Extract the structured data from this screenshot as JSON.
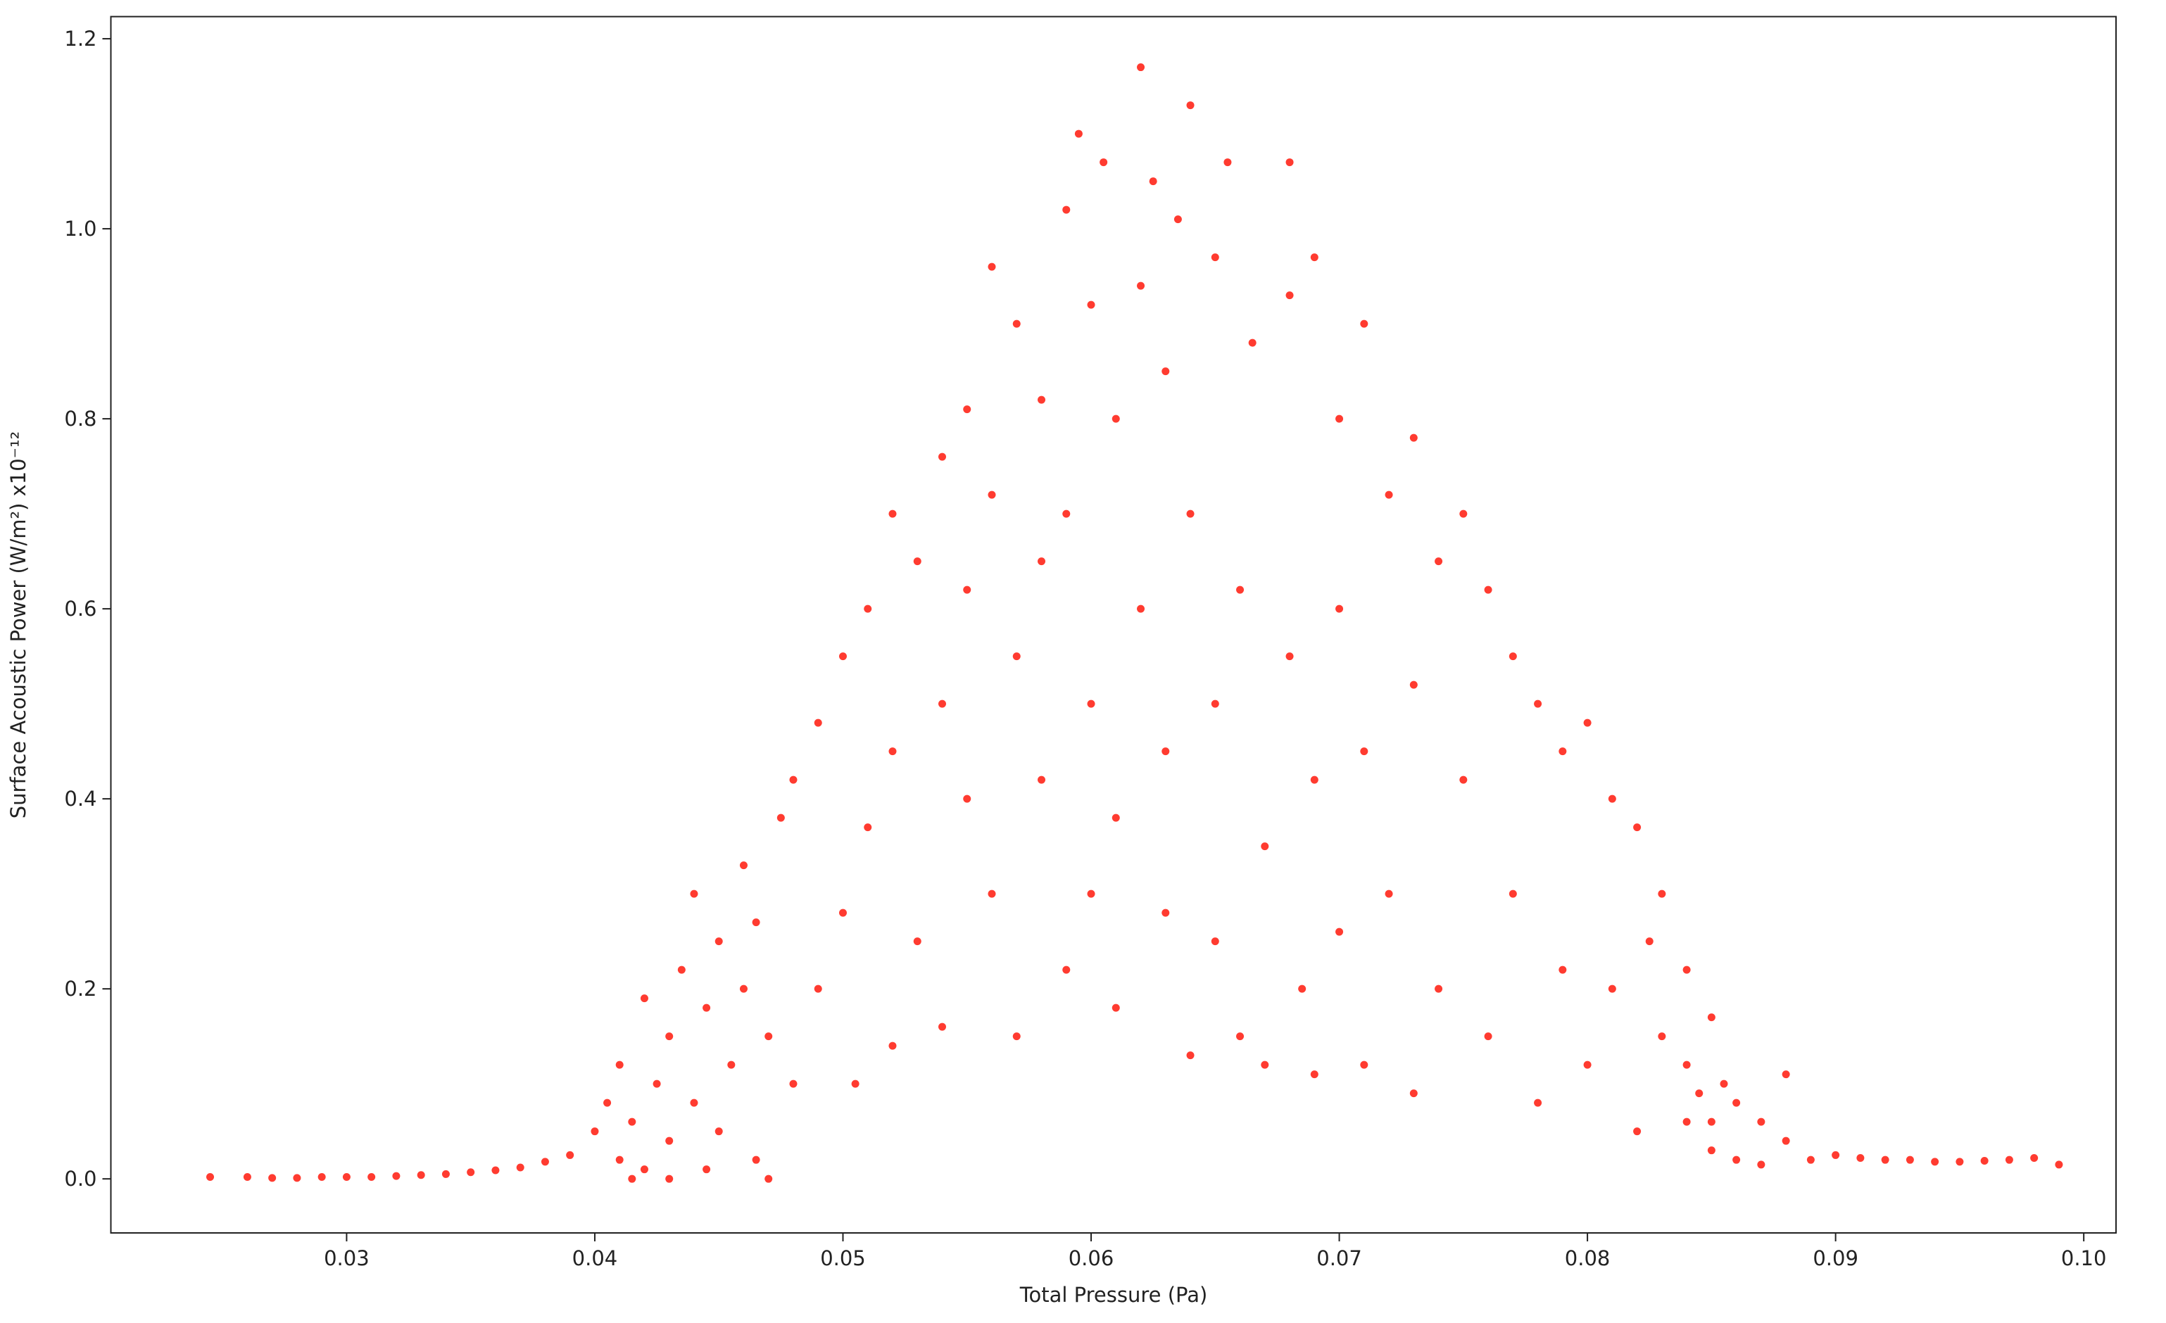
{
  "chart_data": {
    "type": "scatter",
    "x_label": "Total Pressure (Pa)",
    "y_label": "Surface Acoustic Power (W/m²)  x10⁻¹²",
    "color": "#ff3b30",
    "xlim": [
      0.0205,
      0.1013
    ],
    "ylim": [
      -0.0569,
      1.2233
    ],
    "xticks": [
      0.03,
      0.04,
      0.05,
      0.06,
      0.07,
      0.08,
      0.09,
      {
        "value": 0.1,
        "label": "0.10"
      }
    ],
    "yticks": [
      {
        "value": 0,
        "label": "0.0"
      },
      0.2,
      0.4,
      0.6,
      0.8,
      {
        "value": 1,
        "label": "1.0"
      },
      1.2
    ],
    "x": [
      0.0245,
      0.026,
      0.027,
      0.028,
      0.029,
      0.03,
      0.031,
      0.032,
      0.033,
      0.034,
      0.035,
      0.036,
      0.037,
      0.038,
      0.039,
      0.04,
      0.0405,
      0.041,
      0.041,
      0.0415,
      0.042,
      0.042,
      0.0425,
      0.043,
      0.043,
      0.0435,
      0.044,
      0.044,
      0.0445,
      0.045,
      0.045,
      0.0455,
      0.046,
      0.046,
      0.0465,
      0.0465,
      0.047,
      0.047,
      0.0475,
      0.048,
      0.048,
      0.049,
      0.049,
      0.05,
      0.05,
      0.0505,
      0.051,
      0.051,
      0.052,
      0.052,
      0.052,
      0.053,
      0.053,
      0.054,
      0.054,
      0.054,
      0.055,
      0.055,
      0.055,
      0.056,
      0.056,
      0.056,
      0.057,
      0.057,
      0.057,
      0.058,
      0.058,
      0.058,
      0.059,
      0.059,
      0.059,
      0.0595,
      0.06,
      0.06,
      0.06,
      0.0605,
      0.061,
      0.061,
      0.061,
      0.062,
      0.062,
      0.062,
      0.0625,
      0.063,
      0.063,
      0.063,
      0.0635,
      0.064,
      0.064,
      0.064,
      0.065,
      0.065,
      0.065,
      0.0655,
      0.066,
      0.066,
      0.0665,
      0.067,
      0.067,
      0.068,
      0.068,
      0.068,
      0.0685,
      0.069,
      0.069,
      0.069,
      0.07,
      0.07,
      0.07,
      0.071,
      0.071,
      0.071,
      0.072,
      0.072,
      0.073,
      0.073,
      0.073,
      0.074,
      0.074,
      0.075,
      0.075,
      0.076,
      0.076,
      0.077,
      0.077,
      0.078,
      0.078,
      0.079,
      0.079,
      0.08,
      0.08,
      0.081,
      0.081,
      0.082,
      0.082,
      0.083,
      0.083,
      0.084,
      0.084,
      0.085,
      0.085,
      0.0855,
      0.086,
      0.086,
      0.087,
      0.087,
      0.088,
      0.088,
      0.089,
      0.09,
      0.091,
      0.092,
      0.093,
      0.094,
      0.095,
      0.096,
      0.097,
      0.098,
      0.099,
      0.0415,
      0.043,
      0.0445,
      0.0825,
      0.084,
      0.0845,
      0.085
    ],
    "values": [
      0.002,
      0.002,
      0.001,
      0.001,
      0.002,
      0.002,
      0.002,
      0.003,
      0.004,
      0.005,
      0.007,
      0.009,
      0.012,
      0.018,
      0.025,
      0.05,
      0.08,
      0.02,
      0.12,
      0.06,
      0.19,
      0.01,
      0.1,
      0.15,
      0.04,
      0.22,
      0.08,
      0.3,
      0.18,
      0.25,
      0.05,
      0.12,
      0.33,
      0.2,
      0.27,
      0.02,
      0.0,
      0.15,
      0.38,
      0.42,
      0.1,
      0.48,
      0.2,
      0.55,
      0.28,
      0.1,
      0.6,
      0.37,
      0.7,
      0.45,
      0.14,
      0.65,
      0.25,
      0.76,
      0.5,
      0.16,
      0.81,
      0.4,
      0.62,
      0.96,
      0.72,
      0.3,
      0.9,
      0.55,
      0.15,
      0.82,
      0.42,
      0.65,
      1.02,
      0.7,
      0.22,
      1.1,
      0.92,
      0.5,
      0.3,
      1.07,
      0.8,
      0.38,
      0.18,
      1.17,
      0.94,
      0.6,
      1.05,
      0.85,
      0.45,
      0.28,
      1.01,
      1.13,
      0.7,
      0.13,
      0.97,
      0.5,
      0.25,
      1.07,
      0.62,
      0.15,
      0.88,
      0.35,
      0.12,
      0.93,
      0.55,
      1.07,
      0.2,
      0.97,
      0.42,
      0.11,
      0.8,
      0.6,
      0.26,
      0.9,
      0.45,
      0.12,
      0.72,
      0.3,
      0.78,
      0.52,
      0.09,
      0.65,
      0.2,
      0.7,
      0.42,
      0.62,
      0.15,
      0.55,
      0.3,
      0.5,
      0.08,
      0.45,
      0.22,
      0.48,
      0.12,
      0.4,
      0.2,
      0.37,
      0.05,
      0.3,
      0.15,
      0.22,
      0.06,
      0.17,
      0.03,
      0.1,
      0.08,
      0.02,
      0.06,
      0.015,
      0.04,
      0.11,
      0.02,
      0.025,
      0.022,
      0.02,
      0.02,
      0.018,
      0.018,
      0.019,
      0.02,
      0.022,
      0.015,
      0.0,
      0.0,
      0.01,
      0.25,
      0.12,
      0.09,
      0.06
    ]
  }
}
